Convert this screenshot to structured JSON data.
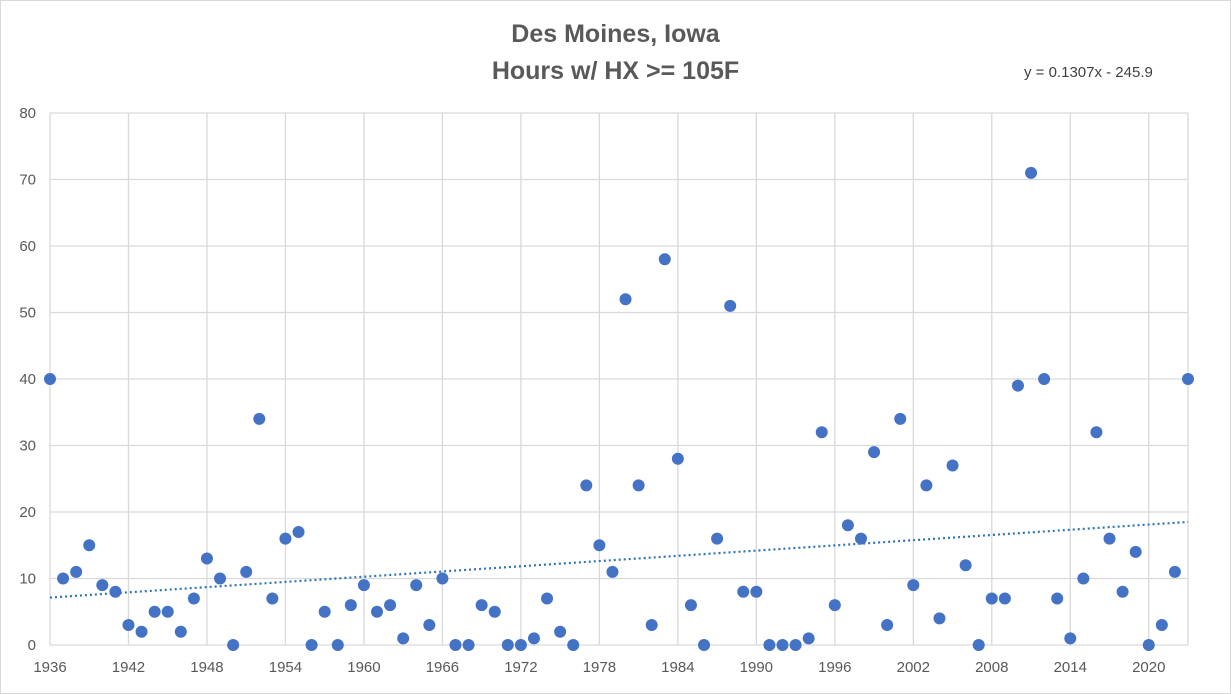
{
  "chart_data": {
    "type": "scatter",
    "title": "Des Moines, Iowa",
    "subtitle": "Hours w/ HX >= 105F",
    "xlabel": "",
    "ylabel": "",
    "xlim": [
      1936,
      2023
    ],
    "ylim": [
      0,
      80
    ],
    "x_ticks": [
      1936,
      1942,
      1948,
      1954,
      1960,
      1966,
      1972,
      1978,
      1984,
      1990,
      1996,
      2002,
      2008,
      2014,
      2020
    ],
    "y_ticks": [
      0,
      10,
      20,
      30,
      40,
      50,
      60,
      70,
      80
    ],
    "grid": true,
    "marker_color": "#4472c4",
    "trendline": {
      "style": "dotted",
      "color": "#2e75b6",
      "slope": 0.1307,
      "intercept": -245.9,
      "equation": "y = 0.1307x - 245.9"
    },
    "x": [
      1936,
      1937,
      1938,
      1939,
      1940,
      1941,
      1942,
      1943,
      1944,
      1945,
      1946,
      1947,
      1948,
      1949,
      1950,
      1951,
      1952,
      1953,
      1954,
      1955,
      1956,
      1957,
      1958,
      1959,
      1960,
      1961,
      1962,
      1963,
      1964,
      1965,
      1966,
      1967,
      1968,
      1969,
      1970,
      1971,
      1972,
      1973,
      1974,
      1975,
      1976,
      1977,
      1978,
      1979,
      1980,
      1981,
      1982,
      1983,
      1984,
      1985,
      1986,
      1987,
      1988,
      1989,
      1990,
      1991,
      1992,
      1993,
      1994,
      1995,
      1996,
      1997,
      1998,
      1999,
      2000,
      2001,
      2002,
      2003,
      2004,
      2005,
      2006,
      2007,
      2008,
      2009,
      2010,
      2011,
      2012,
      2013,
      2014,
      2015,
      2016,
      2017,
      2018,
      2019,
      2020,
      2021,
      2022,
      2023
    ],
    "y": [
      40,
      10,
      11,
      15,
      9,
      8,
      3,
      2,
      5,
      5,
      2,
      7,
      13,
      10,
      0,
      11,
      34,
      7,
      16,
      17,
      0,
      5,
      0,
      6,
      9,
      5,
      6,
      1,
      9,
      3,
      10,
      0,
      0,
      6,
      5,
      0,
      0,
      1,
      7,
      2,
      0,
      24,
      15,
      11,
      52,
      24,
      3,
      58,
      28,
      6,
      0,
      16,
      51,
      8,
      8,
      0,
      0,
      0,
      1,
      32,
      6,
      18,
      16,
      29,
      3,
      34,
      9,
      24,
      4,
      27,
      12,
      0,
      7,
      7,
      39,
      71,
      40,
      7,
      1,
      10,
      32,
      16,
      8,
      14,
      0,
      3,
      11,
      40
    ]
  }
}
